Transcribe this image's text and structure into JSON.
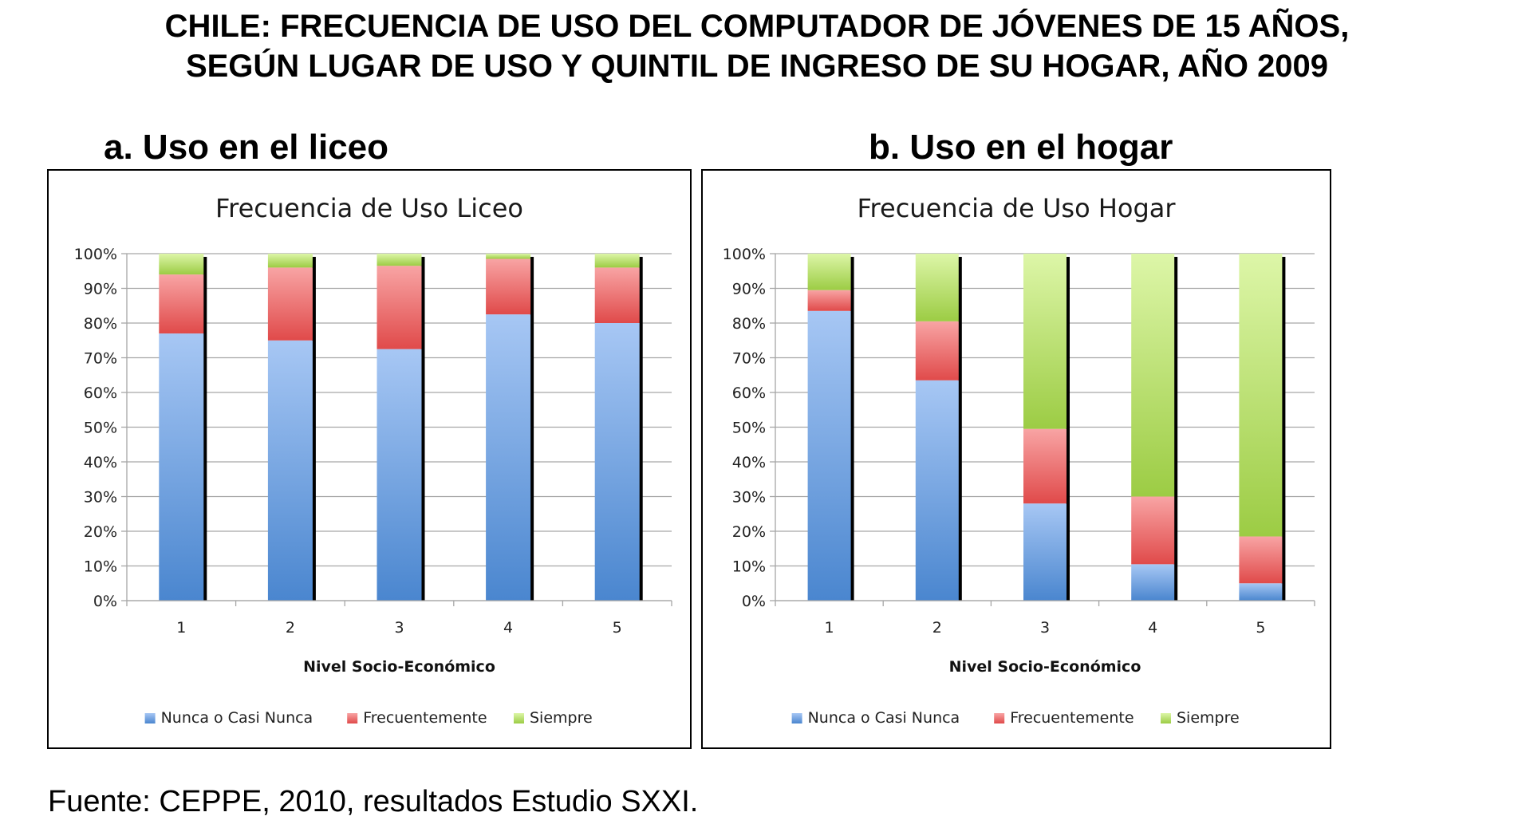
{
  "page": {
    "title_line1": "CHILE: FRECUENCIA DE USO DEL COMPUTADOR DE JÓVENES DE 15 AÑOS,",
    "title_line2": "SEGÚN LUGAR DE USO Y QUINTIL DE INGRESO DE SU HOGAR, AÑO 2009",
    "panel_a_label": "a.   Uso en el liceo",
    "panel_b_label": "b. Uso en el hogar",
    "source": "Fuente: CEPPE, 2010, resultados Estudio SXXI."
  },
  "colors": {
    "nunca": "#4a86cf",
    "nunca_light": "#a7c7f4",
    "frecuentemente": "#e04a4a",
    "frecuentemente_light": "#f8a4a4",
    "siempre": "#9ccc44",
    "siempre_light": "#ddf6a8",
    "grid": "#a6a6a6",
    "shadow": "#000000"
  },
  "chart_data": [
    {
      "type": "bar",
      "stacked": true,
      "title": "Frecuencia de Uso Liceo",
      "xlabel": "Nivel Socio-Económico",
      "ylabel": "",
      "categories": [
        "1",
        "2",
        "3",
        "4",
        "5"
      ],
      "ylim": [
        0,
        100
      ],
      "yticks": [
        "0%",
        "10%",
        "20%",
        "30%",
        "40%",
        "50%",
        "60%",
        "70%",
        "80%",
        "90%",
        "100%"
      ],
      "grid": true,
      "legend": "bottom",
      "series": [
        {
          "name": "Nunca o Casi Nunca",
          "values": [
            77,
            75,
            72.5,
            82.5,
            80
          ]
        },
        {
          "name": "Frecuentemente",
          "values": [
            17,
            21,
            24,
            16,
            16
          ]
        },
        {
          "name": "Siempre",
          "values": [
            6,
            4,
            3.5,
            1.5,
            4
          ]
        }
      ]
    },
    {
      "type": "bar",
      "stacked": true,
      "title": "Frecuencia de Uso Hogar",
      "xlabel": "Nivel Socio-Económico",
      "ylabel": "",
      "categories": [
        "1",
        "2",
        "3",
        "4",
        "5"
      ],
      "ylim": [
        0,
        100
      ],
      "yticks": [
        "0%",
        "10%",
        "20%",
        "30%",
        "40%",
        "50%",
        "60%",
        "70%",
        "80%",
        "90%",
        "100%"
      ],
      "grid": true,
      "legend": "bottom",
      "series": [
        {
          "name": "Nunca o Casi Nunca",
          "values": [
            83.5,
            63.5,
            28,
            10.5,
            5
          ]
        },
        {
          "name": "Frecuentemente",
          "values": [
            6,
            17,
            21.5,
            19.5,
            13.5
          ]
        },
        {
          "name": "Siempre",
          "values": [
            10.5,
            19.5,
            50.5,
            70,
            81.5
          ]
        }
      ]
    }
  ]
}
